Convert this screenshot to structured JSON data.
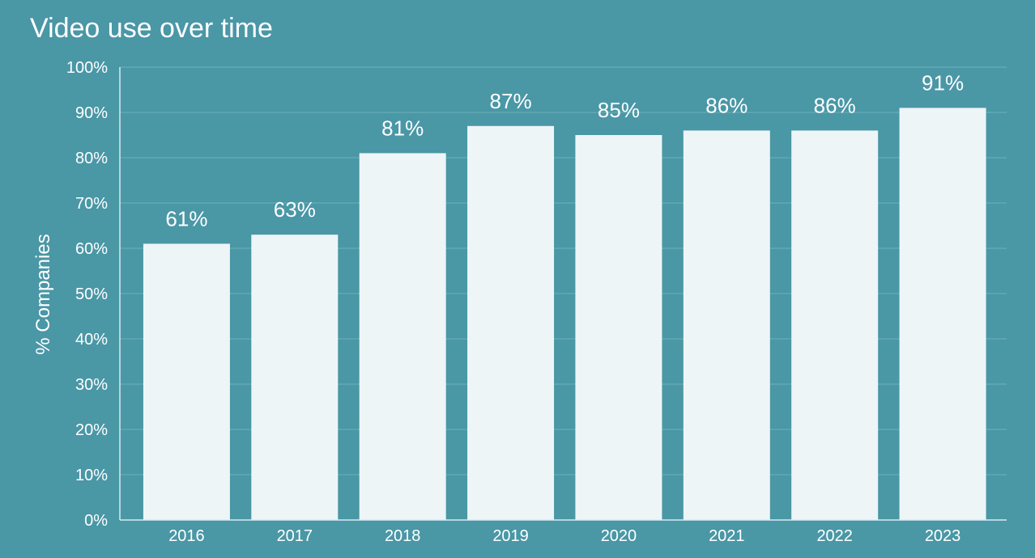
{
  "chart_data": {
    "type": "bar",
    "title": "Video use over time",
    "xlabel": "",
    "ylabel": "% Companies",
    "categories": [
      "2016",
      "2017",
      "2018",
      "2019",
      "2020",
      "2021",
      "2022",
      "2023"
    ],
    "values": [
      61,
      63,
      81,
      87,
      85,
      86,
      86,
      91
    ],
    "value_labels": [
      "61%",
      "63%",
      "81%",
      "87%",
      "85%",
      "86%",
      "86%",
      "91%"
    ],
    "ylim": [
      0,
      100
    ],
    "yticks": [
      0,
      10,
      20,
      30,
      40,
      50,
      60,
      70,
      80,
      90,
      100
    ],
    "ytick_labels": [
      "0%",
      "10%",
      "20%",
      "30%",
      "40%",
      "50%",
      "60%",
      "70%",
      "80%",
      "90%",
      "100%"
    ],
    "grid": true,
    "colors": {
      "background": "#4a97a6",
      "bar": "#eef5f7",
      "gridline": "#6fb0bc",
      "axis": "#d8ecf0",
      "text": "#ffffff"
    }
  }
}
